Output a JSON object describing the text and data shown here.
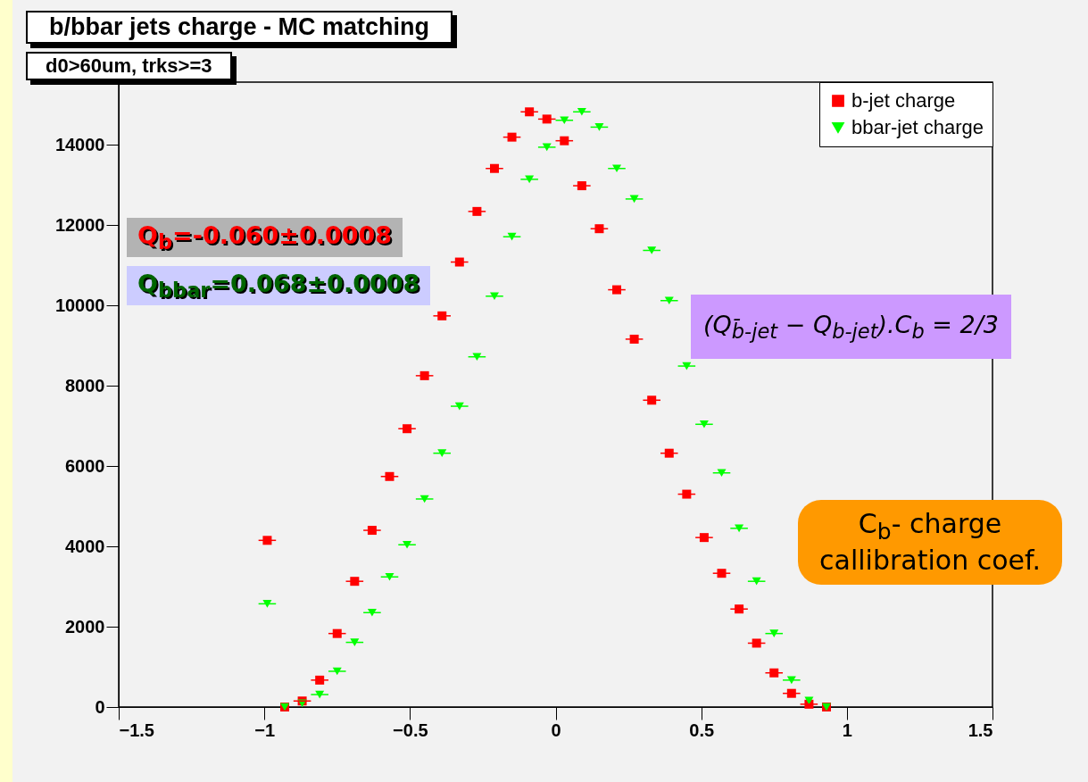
{
  "chart_data": {
    "type": "scatter",
    "title": "b/bbar jets charge - MC matching",
    "subtitle": "d0>60um, trks>=3",
    "x": [
      -0.99,
      -0.93,
      -0.87,
      -0.81,
      -0.75,
      -0.69,
      -0.63,
      -0.57,
      -0.51,
      -0.45,
      -0.39,
      -0.33,
      -0.27,
      -0.21,
      -0.15,
      -0.09,
      -0.03,
      0.03,
      0.09,
      0.15,
      0.21,
      0.27,
      0.33,
      0.39,
      0.45,
      0.51,
      0.57,
      0.63,
      0.69,
      0.75,
      0.81,
      0.87,
      0.93
    ],
    "series": [
      {
        "name": "b-jet charge",
        "color": "#ff0000",
        "marker": "square",
        "values": [
          4150,
          0,
          150,
          670,
          1830,
          3130,
          4400,
          5740,
          6930,
          8250,
          9740,
          11080,
          12340,
          13410,
          14190,
          14820,
          14640,
          14100,
          12980,
          11910,
          10390,
          9160,
          7640,
          6320,
          5300,
          4220,
          3330,
          2440,
          1590,
          850,
          340,
          70,
          0
        ],
        "xerrors": [
          0.03,
          null,
          0.03,
          0.03,
          0.03,
          0.03,
          0.03,
          0.03,
          0.03,
          0.03,
          0.03,
          0.03,
          0.03,
          0.03,
          0.03,
          0.03,
          0.03,
          0.03,
          0.03,
          0.03,
          0.03,
          0.03,
          0.03,
          0.03,
          0.03,
          0.03,
          0.03,
          0.03,
          0.03,
          0.03,
          0.03,
          0.03,
          null
        ]
      },
      {
        "name": "bbar-jet charge",
        "color": "#00ff00",
        "marker": "triangle",
        "values": [
          2570,
          0,
          90,
          310,
          890,
          1610,
          2350,
          3240,
          4040,
          5180,
          6320,
          7490,
          8720,
          10230,
          11710,
          13140,
          13940,
          14610,
          14820,
          14440,
          13410,
          12650,
          11370,
          10120,
          8490,
          7040,
          5830,
          4450,
          3130,
          1830,
          670,
          160,
          0
        ],
        "xerrors": [
          0.03,
          null,
          null,
          0.03,
          0.03,
          0.03,
          0.03,
          0.03,
          0.03,
          0.03,
          0.03,
          0.03,
          0.03,
          0.03,
          0.03,
          0.03,
          0.03,
          0.03,
          0.03,
          0.03,
          0.03,
          0.03,
          0.03,
          0.03,
          0.03,
          0.03,
          0.03,
          0.03,
          0.03,
          0.03,
          0.03,
          null,
          null
        ]
      }
    ],
    "xlim": [
      -1.5,
      1.5
    ],
    "xticks": [
      -1.5,
      -1,
      -0.5,
      0,
      0.5,
      1,
      1.5
    ],
    "ylim": [
      0,
      15560
    ],
    "yticks": [
      0,
      2000,
      4000,
      6000,
      8000,
      10000,
      12000,
      14000
    ],
    "grid": false,
    "legend": "top right",
    "annotations": [
      "Q$_{b}$=-0.060±0.0008",
      "Q$_{bbar}$=0.068±0.0008",
      "(Q$_{b̄-jet}$ − Q$_{b-jet}$).C$_{b}$ = 2/3",
      "C$_{b}$- charge callibration coef."
    ]
  }
}
